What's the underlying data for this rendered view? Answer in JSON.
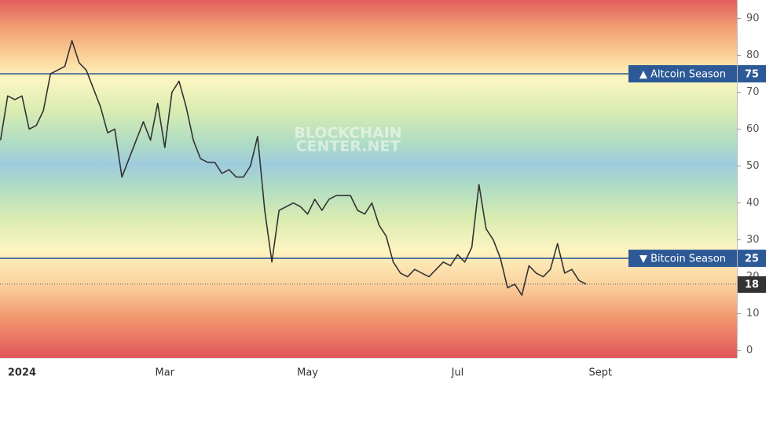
{
  "chart_data": {
    "type": "line",
    "watermark": [
      "BLOCKCHAIN",
      "CENTER.NET"
    ],
    "categories": [
      null,
      null,
      null,
      "2024",
      null,
      null,
      null,
      null,
      null,
      null,
      null,
      null,
      null,
      null,
      null,
      null,
      null,
      null,
      null,
      null,
      null,
      null,
      null,
      "Mar",
      null,
      null,
      null,
      null,
      null,
      null,
      null,
      null,
      null,
      null,
      null,
      null,
      null,
      null,
      null,
      null,
      null,
      null,
      null,
      "May",
      null,
      null,
      null,
      null,
      null,
      null,
      null,
      null,
      null,
      null,
      null,
      null,
      null,
      null,
      null,
      null,
      null,
      null,
      null,
      null,
      "Jul",
      null,
      null,
      null,
      null,
      null,
      null,
      null,
      null,
      null,
      null,
      null,
      null,
      null,
      null,
      null,
      null,
      null,
      null,
      null,
      "Sept"
    ],
    "series": [
      {
        "color": "#333333",
        "values": [
          57,
          69,
          68,
          69,
          60,
          61,
          65,
          75,
          76,
          77,
          84,
          78,
          76,
          71,
          66,
          59,
          60,
          47,
          52,
          57,
          62,
          57,
          67,
          55,
          70,
          73,
          66,
          57,
          52,
          51,
          51,
          48,
          49,
          47,
          47,
          50,
          58,
          38,
          24,
          38,
          39,
          40,
          39,
          37,
          41,
          38,
          41,
          42,
          42,
          42,
          38,
          37,
          40,
          34,
          31,
          24,
          21,
          20,
          22,
          21,
          20,
          22,
          24,
          23,
          26,
          24,
          28,
          45,
          33,
          30,
          25,
          17,
          18,
          15,
          23,
          21,
          20,
          22,
          29,
          21,
          22,
          19,
          18,
          null,
          null
        ]
      }
    ],
    "ylim": [
      -2,
      95
    ],
    "yticks": [
      0,
      10,
      20,
      30,
      40,
      50,
      60,
      70,
      80,
      90
    ],
    "reference_lines": [
      {
        "label": "▲ Altcoin Season",
        "value": 75,
        "color": "#2d5a97"
      },
      {
        "label": "▼ Bitcoin Season",
        "value": 25,
        "color": "#2d5a97"
      }
    ]
  }
}
